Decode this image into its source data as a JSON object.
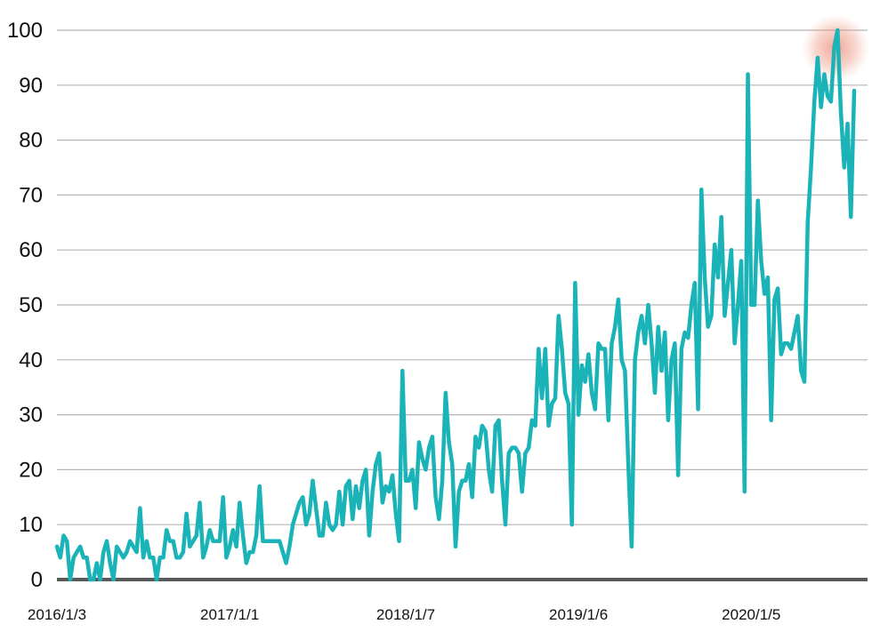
{
  "chart_data": {
    "type": "line",
    "title": "",
    "xlabel": "",
    "ylabel": "",
    "ylim": [
      0,
      100
    ],
    "yticks": [
      0,
      10,
      20,
      30,
      40,
      50,
      60,
      70,
      80,
      90,
      100
    ],
    "xtick_labels": [
      "2016/1/3",
      "2017/1/1",
      "2018/1/7",
      "2019/1/6",
      "2020/1/5"
    ],
    "x_start": "2016/1/3",
    "x_interval": "weekly",
    "grid": true,
    "legend": "none",
    "line_color": "#1ab3b8",
    "highlight_color": "#e8735a",
    "highlight_value": 100,
    "values": [
      6,
      4,
      8,
      7,
      0,
      4,
      5,
      6,
      4,
      4,
      0,
      0,
      3,
      0,
      5,
      7,
      3,
      0,
      6,
      5,
      4,
      5,
      7,
      6,
      5,
      13,
      4,
      7,
      4,
      4,
      0,
      4,
      4,
      9,
      7,
      7,
      4,
      4,
      5,
      12,
      6,
      7,
      8,
      14,
      4,
      6,
      9,
      7,
      7,
      7,
      15,
      4,
      6,
      9,
      6,
      14,
      8,
      3,
      5,
      5,
      8,
      17,
      7,
      7,
      7,
      7,
      7,
      7,
      5,
      3,
      6,
      10,
      12,
      14,
      15,
      10,
      12,
      18,
      13,
      8,
      8,
      14,
      10,
      9,
      10,
      16,
      10,
      17,
      18,
      11,
      17,
      13,
      18,
      20,
      8,
      16,
      21,
      23,
      14,
      17,
      16,
      19,
      12,
      7,
      38,
      18,
      18,
      20,
      13,
      25,
      22,
      20,
      24,
      26,
      15,
      11,
      18,
      34,
      25,
      21,
      6,
      16,
      18,
      18,
      21,
      15,
      26,
      24,
      28,
      27,
      20,
      16,
      28,
      29,
      18,
      10,
      23,
      24,
      24,
      23,
      16,
      23,
      24,
      29,
      28,
      42,
      33,
      42,
      28,
      32,
      33,
      48,
      42,
      34,
      32,
      10,
      54,
      30,
      39,
      36,
      41,
      34,
      31,
      43,
      42,
      42,
      29,
      43,
      46,
      51,
      40,
      38,
      21,
      6,
      40,
      45,
      48,
      43,
      50,
      43,
      34,
      46,
      38,
      45,
      29,
      40,
      43,
      19,
      42,
      45,
      44,
      50,
      54,
      31,
      71,
      55,
      46,
      48,
      61,
      55,
      66,
      48,
      54,
      60,
      43,
      50,
      58,
      16,
      92,
      50,
      50,
      69,
      58,
      52,
      55,
      29,
      51,
      53,
      41,
      43,
      43,
      42,
      45,
      48,
      38,
      36,
      65,
      75,
      87,
      95,
      86,
      92,
      88,
      87,
      97,
      100,
      85,
      75,
      83,
      66,
      89
    ]
  }
}
